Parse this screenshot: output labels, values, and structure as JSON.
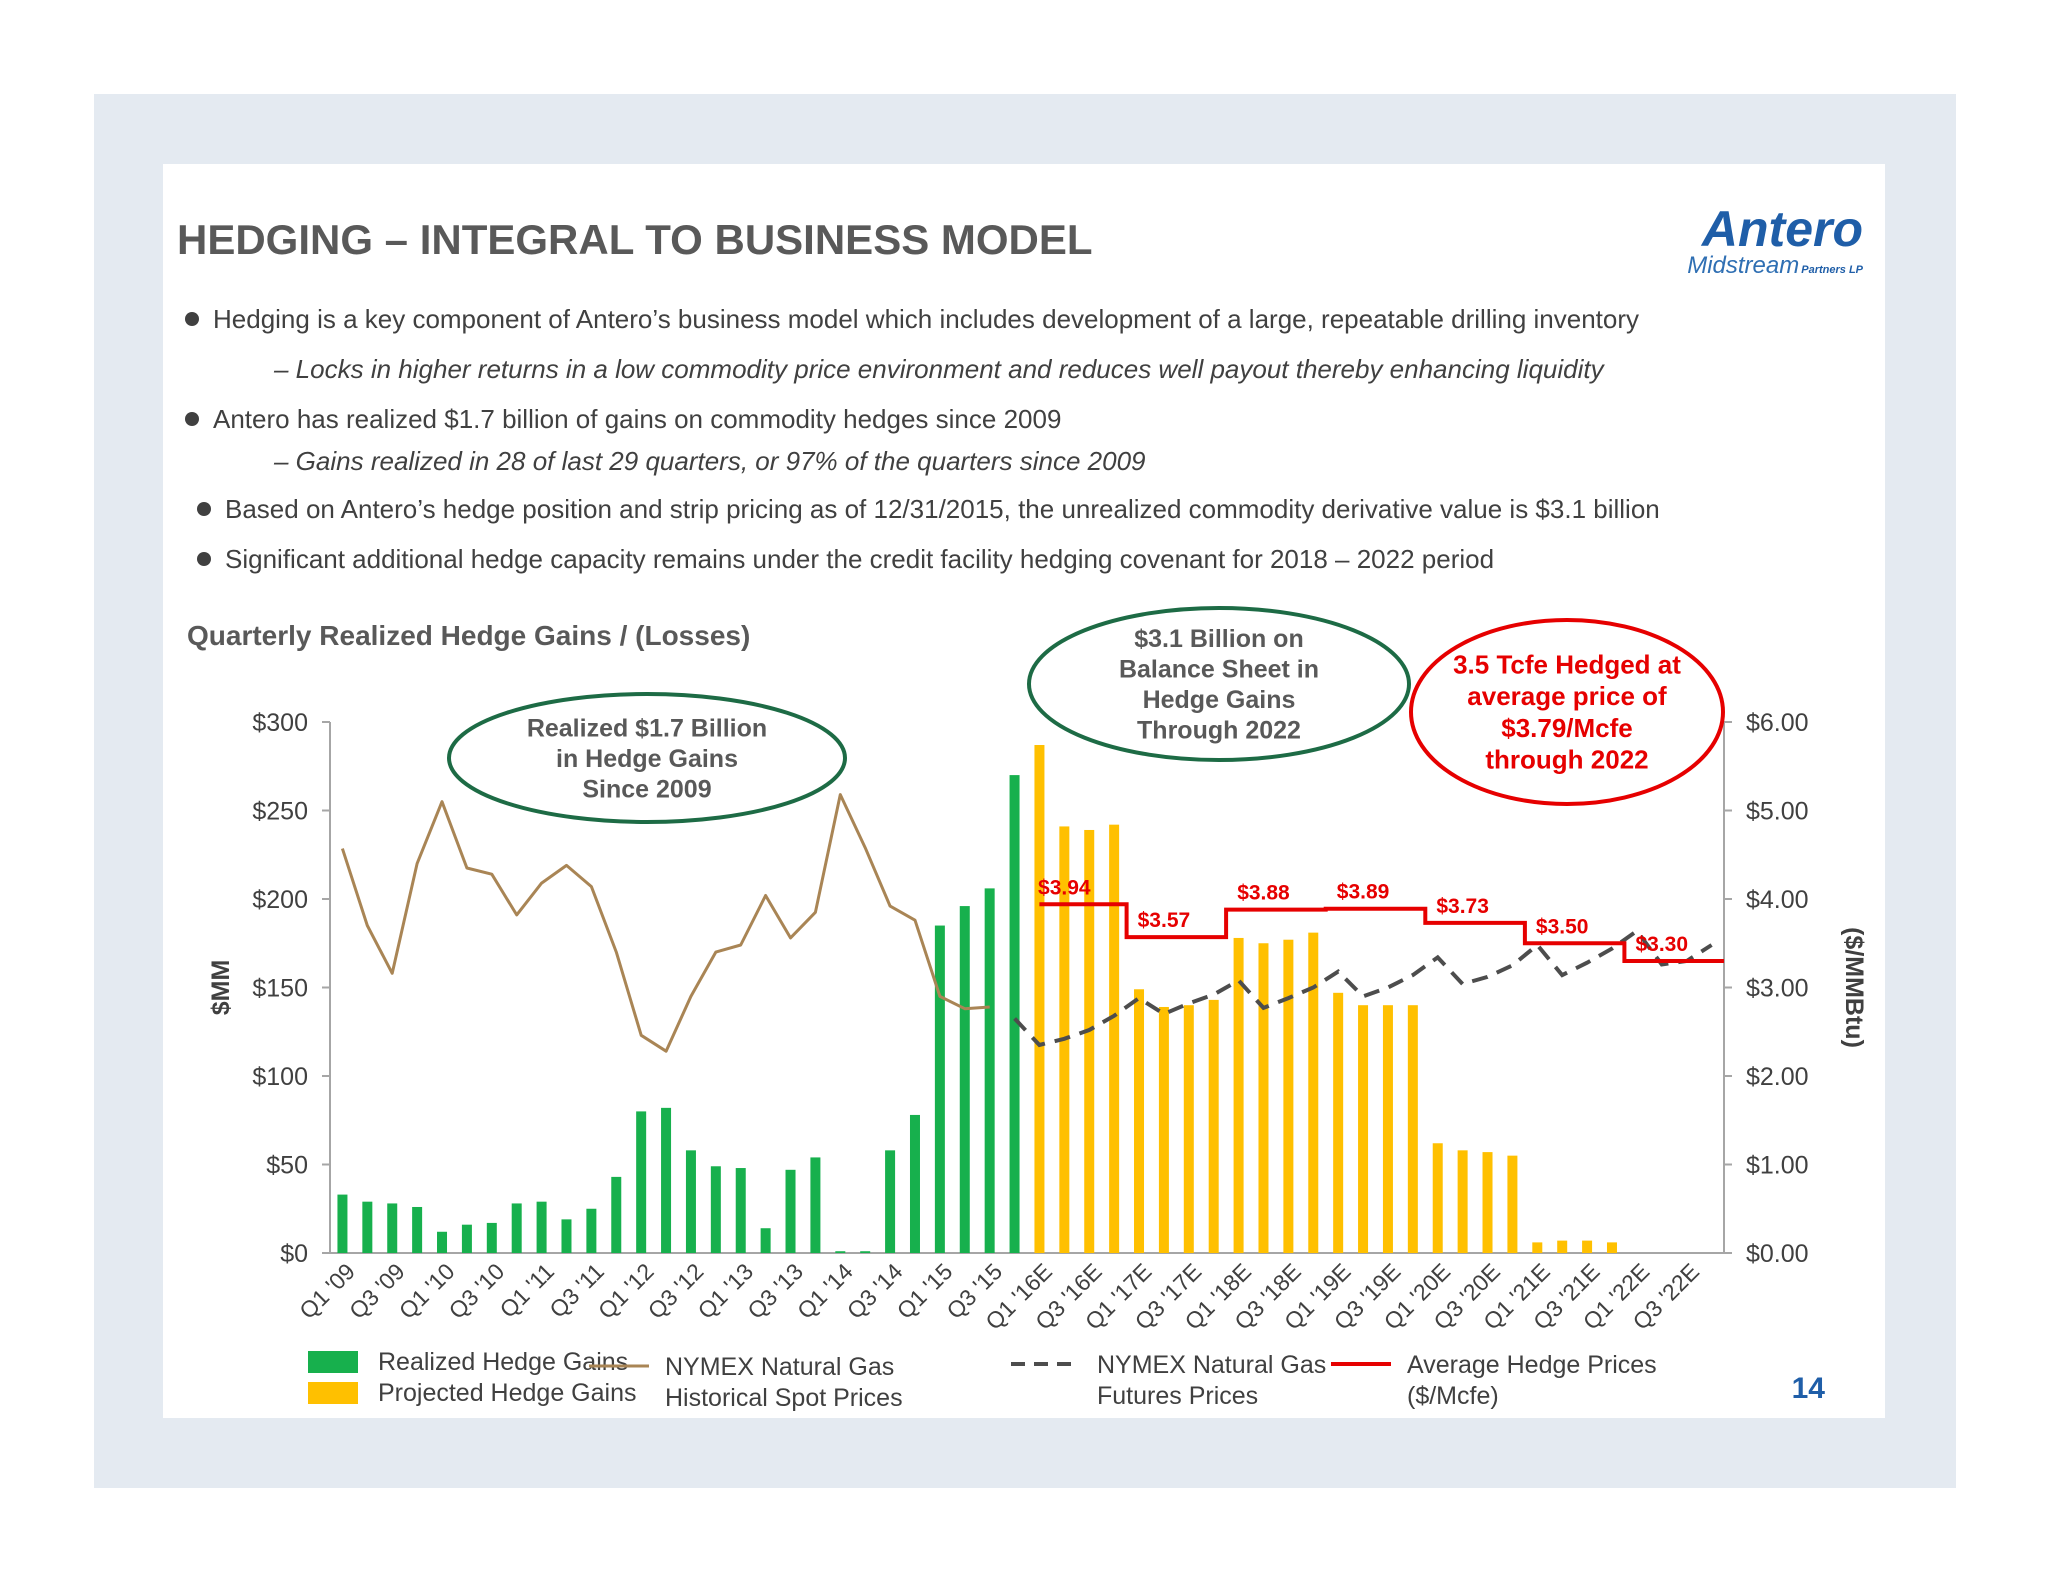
{
  "page": {
    "title": "HEDGING – INTEGRAL TO BUSINESS MODEL",
    "page_number": "14",
    "logo": {
      "main": "Antero",
      "sub": "Midstream",
      "suffix": "Partners LP"
    }
  },
  "bullets": [
    {
      "text": "Hedging is a key component of Antero’s business model which includes development of a large, repeatable drilling inventory",
      "level": 1
    },
    {
      "text": "– Locks in higher returns in a low commodity price environment and reduces well payout thereby enhancing liquidity",
      "level": 2
    },
    {
      "text": "Antero has realized $1.7 billion of gains on commodity hedges since 2009",
      "level": 1
    },
    {
      "text": "– Gains realized in 28 of last 29 quarters, or 97% of the quarters since 2009",
      "level": 2
    },
    {
      "text": "Based on Antero’s hedge position and strip pricing as of 12/31/2015, the unrealized commodity derivative value is $3.1 billion",
      "level": 1
    },
    {
      "text": "Significant additional hedge capacity remains under the credit facility hedging covenant for 2018 – 2022 period",
      "level": 1
    }
  ],
  "colors": {
    "realized": "#17b04d",
    "projected": "#ffc000",
    "spot": "#a98555",
    "futures": "#4d4d4d",
    "avg": "#e60000",
    "ellipse_green": "#1d6b45",
    "ellipse_red": "#e60000"
  },
  "chart_data": {
    "type": "bar",
    "title": "Quarterly Realized Hedge Gains / (Losses)",
    "ylabel": "$MM",
    "y2label": "($/MMBtu)",
    "ylim": [
      0,
      300
    ],
    "y2lim": [
      0,
      6
    ],
    "yticks": [
      "$0",
      "$50",
      "$100",
      "$150",
      "$200",
      "$250",
      "$300"
    ],
    "y2ticks": [
      "$0.00",
      "$1.00",
      "$2.00",
      "$3.00",
      "$4.00",
      "$5.00",
      "$6.00"
    ],
    "categories": [
      "Q1 '09",
      "Q2 '09",
      "Q3 '09",
      "Q4 '09",
      "Q1 '10",
      "Q2 '10",
      "Q3 '10",
      "Q4 '10",
      "Q1 '11",
      "Q2 '11",
      "Q3 '11",
      "Q4 '11",
      "Q1 '12",
      "Q2 '12",
      "Q3 '12",
      "Q4 '12",
      "Q1 '13",
      "Q2 '13",
      "Q3 '13",
      "Q4 '13",
      "Q1 '14",
      "Q2 '14",
      "Q3 '14",
      "Q4 '14",
      "Q1 '15",
      "Q2 '15",
      "Q3 '15",
      "Q4 '15",
      "Q1 '16E",
      "Q2 '16E",
      "Q3 '16E",
      "Q4 '16E",
      "Q1 '17E",
      "Q2 '17E",
      "Q3 '17E",
      "Q4 '17E",
      "Q1 '18E",
      "Q2 '18E",
      "Q3 '18E",
      "Q4 '18E",
      "Q1 '19E",
      "Q2 '19E",
      "Q3 '19E",
      "Q4 '19E",
      "Q1 '20E",
      "Q2 '20E",
      "Q3 '20E",
      "Q4 '20E",
      "Q1 '21E",
      "Q2 '21E",
      "Q3 '21E",
      "Q4 '21E",
      "Q1 '22E",
      "Q2 '22E",
      "Q3 '22E",
      "Q4 '22E"
    ],
    "tick_labels": [
      "Q1 '09",
      "Q3 '09",
      "Q1 '10",
      "Q3 '10",
      "Q1 '11",
      "Q3 '11",
      "Q1 '12",
      "Q3 '12",
      "Q1 '13",
      "Q3 '13",
      "Q1 '14",
      "Q3 '14",
      "Q1 '15",
      "Q3 '15",
      "Q1 '16E",
      "Q3 '16E",
      "Q1 '17E",
      "Q3 '17E",
      "Q1 '18E",
      "Q3 '18E",
      "Q1 '19E",
      "Q3 '19E",
      "Q1 '20E",
      "Q3 '20E",
      "Q1 '21E",
      "Q3 '21E",
      "Q1 '22E",
      "Q3 '22E"
    ],
    "series": [
      {
        "name": "Realized Hedge Gains",
        "axis": "left",
        "values": [
          33,
          29,
          28,
          26,
          12,
          16,
          17,
          28,
          29,
          19,
          25,
          43,
          80,
          82,
          58,
          49,
          48,
          14,
          47,
          54,
          1,
          1,
          58,
          78,
          185,
          196,
          206,
          270,
          null,
          null,
          null,
          null,
          null,
          null,
          null,
          null,
          null,
          null,
          null,
          null,
          null,
          null,
          null,
          null,
          null,
          null,
          null,
          null,
          null,
          null,
          null,
          null,
          null,
          null,
          null,
          null
        ]
      },
      {
        "name": "Projected Hedge Gains",
        "axis": "left",
        "values": [
          null,
          null,
          null,
          null,
          null,
          null,
          null,
          null,
          null,
          null,
          null,
          null,
          null,
          null,
          null,
          null,
          null,
          null,
          null,
          null,
          null,
          null,
          null,
          null,
          null,
          null,
          null,
          null,
          287,
          241,
          239,
          242,
          149,
          139,
          140,
          143,
          178,
          175,
          177,
          181,
          147,
          140,
          140,
          140,
          62,
          58,
          57,
          55,
          6,
          7,
          7,
          6,
          null,
          null,
          null,
          null
        ]
      },
      {
        "name": "NYMEX Natural Gas Historical Spot Prices",
        "axis": "right",
        "values": [
          4.57,
          3.7,
          3.16,
          4.4,
          5.1,
          4.35,
          4.28,
          3.82,
          4.18,
          4.38,
          4.14,
          3.4,
          2.46,
          2.28,
          2.9,
          3.4,
          3.48,
          4.04,
          3.56,
          3.85,
          5.18,
          4.58,
          3.92,
          3.76,
          2.9,
          2.76,
          2.78,
          null,
          null,
          null,
          null,
          null,
          null,
          null,
          null,
          null,
          null,
          null,
          null,
          null,
          null,
          null,
          null,
          null,
          null,
          null,
          null,
          null,
          null,
          null,
          null,
          null,
          null,
          null,
          null,
          null
        ]
      },
      {
        "name": "NYMEX Natural Gas Futures Prices",
        "axis": "right",
        "values": [
          null,
          null,
          null,
          null,
          null,
          null,
          null,
          null,
          null,
          null,
          null,
          null,
          null,
          null,
          null,
          null,
          null,
          null,
          null,
          null,
          null,
          null,
          null,
          null,
          null,
          null,
          null,
          2.65,
          2.35,
          2.42,
          2.52,
          2.68,
          2.88,
          2.7,
          2.82,
          2.92,
          3.08,
          2.77,
          2.88,
          3.0,
          3.18,
          2.9,
          3.0,
          3.14,
          3.34,
          3.04,
          3.12,
          3.25,
          3.48,
          3.14,
          3.28,
          3.44,
          3.64,
          3.26,
          3.3,
          3.48
        ]
      },
      {
        "name": "Average Hedge Prices ($/Mcfe)",
        "axis": "right",
        "values": [
          null,
          null,
          null,
          null,
          null,
          null,
          null,
          null,
          null,
          null,
          null,
          null,
          null,
          null,
          null,
          null,
          null,
          null,
          null,
          null,
          null,
          null,
          null,
          null,
          null,
          null,
          null,
          null,
          3.94,
          3.94,
          3.94,
          3.94,
          3.57,
          3.57,
          3.57,
          3.57,
          3.88,
          3.88,
          3.88,
          3.88,
          3.89,
          3.89,
          3.89,
          3.89,
          3.73,
          3.73,
          3.73,
          3.73,
          3.5,
          3.5,
          3.5,
          3.5,
          3.3,
          3.3,
          3.3,
          3.3
        ]
      }
    ],
    "price_labels": [
      {
        "index": 29,
        "value": 3.94,
        "text": "$3.94"
      },
      {
        "index": 33,
        "value": 3.57,
        "text": "$3.57"
      },
      {
        "index": 37,
        "value": 3.88,
        "text": "$3.88"
      },
      {
        "index": 41,
        "value": 3.89,
        "text": "$3.89"
      },
      {
        "index": 45,
        "value": 3.73,
        "text": "$3.73"
      },
      {
        "index": 49,
        "value": 3.5,
        "text": "$3.50"
      },
      {
        "index": 53,
        "value": 3.3,
        "text": "$3.30"
      }
    ],
    "callouts": [
      {
        "lines": [
          "Realized $1.7 Billion",
          "in Hedge Gains",
          "Since 2009"
        ],
        "style": "green"
      },
      {
        "lines": [
          "$3.1 Billion on",
          "Balance Sheet in",
          "Hedge Gains",
          "Through 2022"
        ],
        "style": "green"
      },
      {
        "lines": [
          "3.5 Tcfe Hedged at",
          "average price of",
          "$3.79/Mcfe",
          "through 2022"
        ],
        "style": "red"
      }
    ],
    "legend": [
      {
        "label": [
          "Realized Hedge Gains"
        ],
        "type": "box",
        "series": 0
      },
      {
        "label": [
          "Projected Hedge Gains"
        ],
        "type": "box",
        "series": 1
      },
      {
        "label": [
          "NYMEX Natural Gas",
          "Historical Spot Prices"
        ],
        "type": "line",
        "series": 2
      },
      {
        "label": [
          "NYMEX Natural Gas",
          "Futures Prices"
        ],
        "type": "dash",
        "series": 3
      },
      {
        "label": [
          "Average Hedge Prices",
          "($/Mcfe)"
        ],
        "type": "line",
        "series": 4
      }
    ],
    "legend_position": "bottom",
    "grid": false
  }
}
